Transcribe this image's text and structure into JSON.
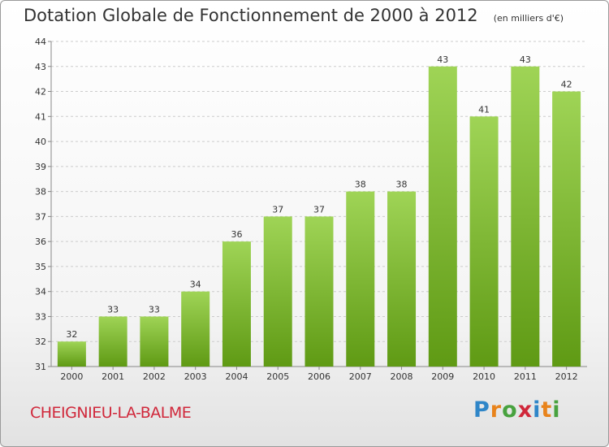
{
  "title": "Dotation Globale de Fonctionnement de 2000 à 2012",
  "subtitle": "(en milliers d'€)",
  "commune": "CHEIGNIEU-LA-BALME",
  "logo": {
    "text": "Proxiti",
    "letters": [
      {
        "char": "P",
        "color": "#2f86c8"
      },
      {
        "char": "r",
        "color": "#e8831b"
      },
      {
        "char": "o",
        "color": "#48a23f"
      },
      {
        "char": "x",
        "color": "#d0273a"
      },
      {
        "char": "i",
        "color": "#2f86c8"
      },
      {
        "char": "t",
        "color": "#e8831b"
      },
      {
        "char": "i",
        "color": "#48a23f"
      }
    ]
  },
  "colors": {
    "bar_top": "#9fd456",
    "bar_bottom": "#5f9a14",
    "grid": "#cccccc",
    "axis": "#888888"
  },
  "chart_data": {
    "type": "bar",
    "title": "Dotation Globale de Fonctionnement de 2000 à 2012",
    "subtitle": "(en milliers d'€)",
    "xlabel": "",
    "ylabel": "",
    "categories": [
      "2000",
      "2001",
      "2002",
      "2003",
      "2004",
      "2005",
      "2006",
      "2007",
      "2008",
      "2009",
      "2010",
      "2011",
      "2012"
    ],
    "values": [
      32,
      33,
      33,
      34,
      36,
      37,
      37,
      38,
      38,
      43,
      41,
      43,
      42
    ],
    "ylim": [
      31,
      44
    ],
    "yticks": [
      31,
      32,
      33,
      34,
      35,
      36,
      37,
      38,
      39,
      40,
      41,
      42,
      43,
      44
    ],
    "grid": "horizontal dashed",
    "legend": "none"
  }
}
